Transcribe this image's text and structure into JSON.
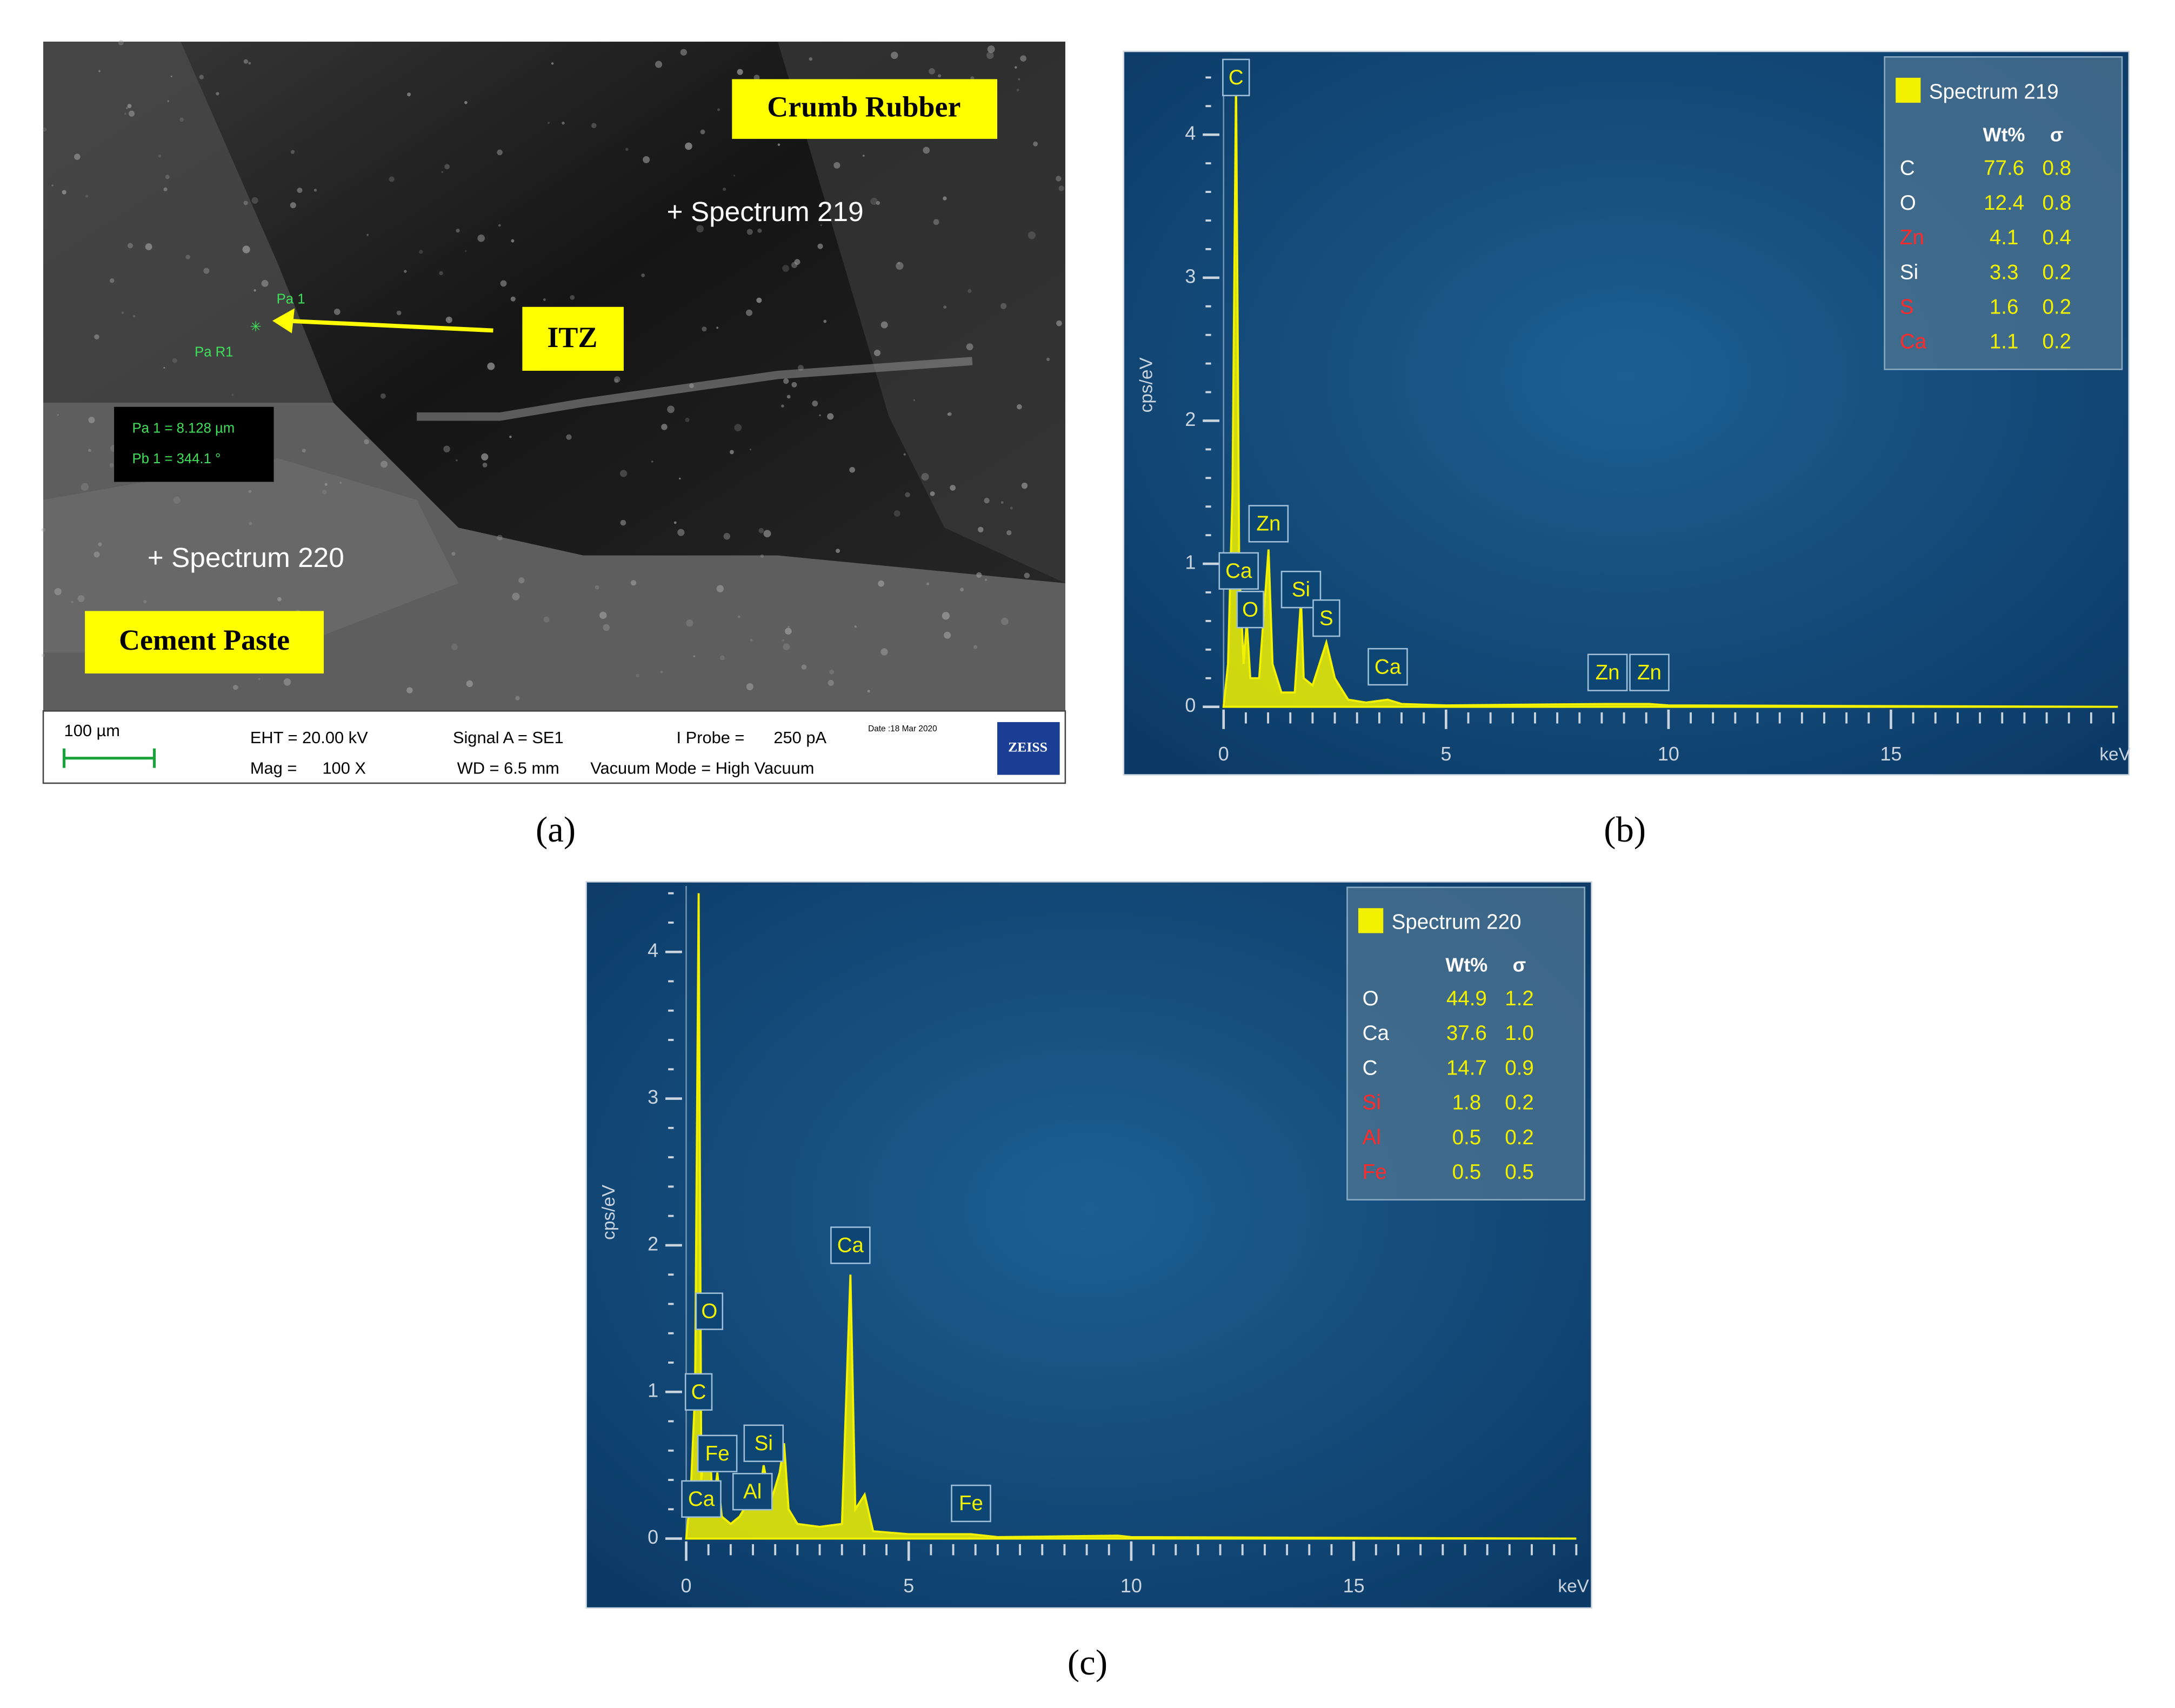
{
  "sem_image": {
    "labels": {
      "crumb_rubber": "Crumb Rubber",
      "spectrum_219": "+ Spectrum 219",
      "itz": "ITZ",
      "pa1": "Pa 1",
      "par1": "Pa R1",
      "measure_a": "Pa 1 = 8.128 µm",
      "measure_b": "Pb 1 = 344.1 °",
      "spectrum_220": "+ Spectrum 220",
      "cement_paste": "Cement Paste"
    },
    "footer": {
      "scale": "100 µm",
      "eht": "EHT = 20.00 kV",
      "signal": "Signal A = SE1",
      "probe": "I Probe =",
      "probe_value": "250 pA",
      "date": "Date :18 Mar 2020",
      "mag": "Mag =",
      "mag_value": "100 X",
      "wd": "WD = 6.5 mm",
      "vacuum": "Vacuum Mode = High Vacuum",
      "logo": "ZEISS"
    }
  },
  "panel_labels": [
    "(a)",
    "(b)",
    "(c)"
  ],
  "chart_data": [
    {
      "type": "line",
      "fill": true,
      "color": "#f2f200",
      "y_label": "cps/eV",
      "x_label": "keV",
      "xlim": [
        0,
        20.1
      ],
      "ylim": [
        0,
        4.5
      ],
      "xticks": [
        0,
        5,
        10,
        15
      ],
      "yticks": [
        0,
        1,
        2,
        3,
        4
      ],
      "xminor": 0.5,
      "yminor": 0.2,
      "x": [
        0,
        0.1,
        0.2,
        0.28,
        0.35,
        0.45,
        0.52,
        0.6,
        0.8,
        1.01,
        1.1,
        1.3,
        1.6,
        1.74,
        1.8,
        2.0,
        2.31,
        2.5,
        2.8,
        3.2,
        3.69,
        4.0,
        5,
        8.63,
        9.57,
        10,
        20.1
      ],
      "values": [
        0,
        0.3,
        1.5,
        4.4,
        1.0,
        0.3,
        0.6,
        0.2,
        0.2,
        1.1,
        0.3,
        0.1,
        0.1,
        0.75,
        0.2,
        0.15,
        0.45,
        0.2,
        0.05,
        0.03,
        0.05,
        0.02,
        0.01,
        0.02,
        0.02,
        0.01,
        0
      ],
      "peak_labels": [
        {
          "text": "C",
          "x": 0.28,
          "y": 4.4
        },
        {
          "text": "Ca",
          "x": 0.34,
          "y": 0.95
        },
        {
          "text": "O",
          "x": 0.6,
          "y": 0.68
        },
        {
          "text": "Zn",
          "x": 1.01,
          "y": 1.28
        },
        {
          "text": "Si",
          "x": 1.74,
          "y": 0.82
        },
        {
          "text": "S",
          "x": 2.31,
          "y": 0.62
        },
        {
          "text": "Ca",
          "x": 3.69,
          "y": 0.28
        },
        {
          "text": "Zn",
          "x": 8.63,
          "y": 0.24
        },
        {
          "text": "Zn",
          "x": 9.57,
          "y": 0.24
        }
      ],
      "legend": {
        "position": "upper right",
        "title": "Spectrum 219",
        "columns": [
          "Wt%",
          "σ"
        ],
        "rows": [
          {
            "element": "C",
            "color": "#ffffff",
            "wt": "77.6",
            "sigma": "0.8"
          },
          {
            "element": "O",
            "color": "#ffffff",
            "wt": "12.4",
            "sigma": "0.8"
          },
          {
            "element": "Zn",
            "color": "#ff2a2a",
            "wt": "4.1",
            "sigma": "0.4"
          },
          {
            "element": "Si",
            "color": "#ffffff",
            "wt": "3.3",
            "sigma": "0.2"
          },
          {
            "element": "S",
            "color": "#ff2a2a",
            "wt": "1.6",
            "sigma": "0.2"
          },
          {
            "element": "Ca",
            "color": "#ff2a2a",
            "wt": "1.1",
            "sigma": "0.2"
          }
        ]
      }
    },
    {
      "type": "line",
      "fill": true,
      "color": "#f2f200",
      "y_label": "cps/eV",
      "x_label": "keV",
      "xlim": [
        0,
        20
      ],
      "ylim": [
        0,
        4.45
      ],
      "xticks": [
        0,
        5,
        10,
        15
      ],
      "yticks": [
        0,
        1,
        2,
        3,
        4
      ],
      "xminor": 0.5,
      "yminor": 0.2,
      "x": [
        0,
        0.1,
        0.2,
        0.28,
        0.34,
        0.4,
        0.52,
        0.6,
        0.7,
        0.8,
        1.0,
        1.2,
        1.49,
        1.6,
        1.74,
        1.9,
        2.1,
        2.2,
        2.3,
        2.5,
        3.0,
        3.5,
        3.69,
        3.8,
        4.01,
        4.2,
        5,
        6.4,
        7,
        9.7,
        10,
        20
      ],
      "values": [
        0,
        0.3,
        1.0,
        4.4,
        0.4,
        0.6,
        0.7,
        0.2,
        0.45,
        0.15,
        0.1,
        0.15,
        0.3,
        0.2,
        0.5,
        0.25,
        0.45,
        0.65,
        0.2,
        0.1,
        0.08,
        0.1,
        1.8,
        0.2,
        0.3,
        0.05,
        0.03,
        0.03,
        0.01,
        0.02,
        0.01,
        0
      ],
      "peak_labels": [
        {
          "text": "Ca",
          "x": 0.34,
          "y": 0.27
        },
        {
          "text": "C",
          "x": 0.28,
          "y": 1.0
        },
        {
          "text": "O",
          "x": 0.52,
          "y": 1.55
        },
        {
          "text": "Fe",
          "x": 0.7,
          "y": 0.58
        },
        {
          "text": "Al",
          "x": 1.49,
          "y": 0.32
        },
        {
          "text": "Si",
          "x": 1.74,
          "y": 0.65
        },
        {
          "text": "Ca",
          "x": 3.69,
          "y": 2.0
        },
        {
          "text": "Fe",
          "x": 6.4,
          "y": 0.24
        }
      ],
      "legend": {
        "position": "upper right",
        "title": "Spectrum 220",
        "columns": [
          "Wt%",
          "σ"
        ],
        "rows": [
          {
            "element": "O",
            "color": "#ffffff",
            "wt": "44.9",
            "sigma": "1.2"
          },
          {
            "element": "Ca",
            "color": "#ffffff",
            "wt": "37.6",
            "sigma": "1.0"
          },
          {
            "element": "C",
            "color": "#ffffff",
            "wt": "14.7",
            "sigma": "0.9"
          },
          {
            "element": "Si",
            "color": "#ff2a2a",
            "wt": "1.8",
            "sigma": "0.2"
          },
          {
            "element": "Al",
            "color": "#ff2a2a",
            "wt": "0.5",
            "sigma": "0.2"
          },
          {
            "element": "Fe",
            "color": "#ff2a2a",
            "wt": "0.5",
            "sigma": "0.5"
          }
        ]
      }
    }
  ]
}
